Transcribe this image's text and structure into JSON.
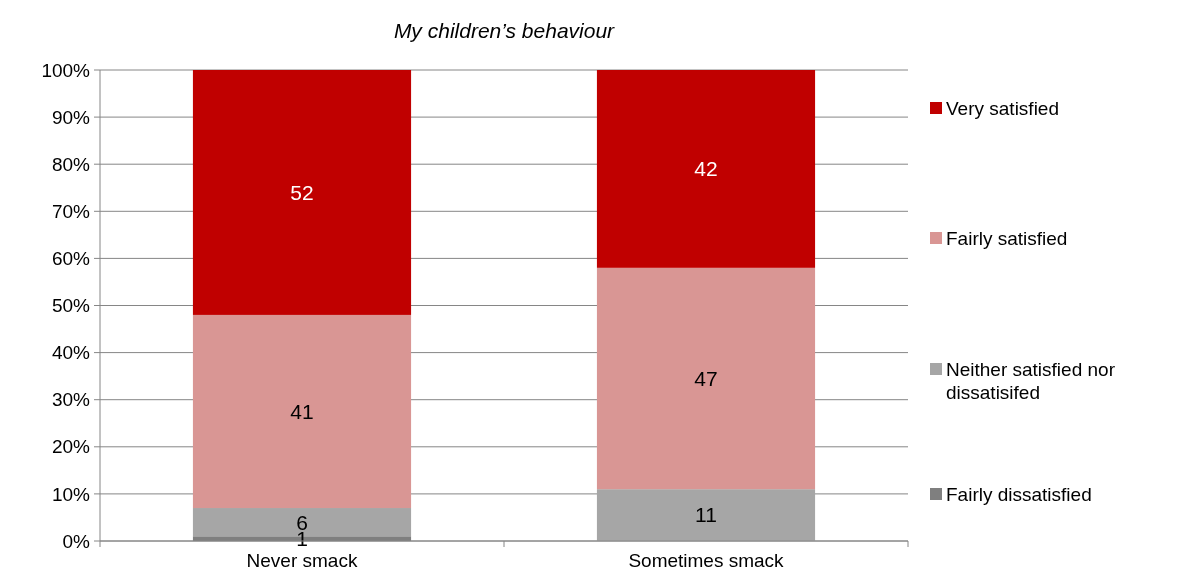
{
  "chart_data": {
    "type": "bar",
    "title": "My children’s behaviour",
    "categories": [
      "Never smack",
      "Sometimes smack"
    ],
    "stacked": true,
    "data_labels": true,
    "grid": "y",
    "legend": "right",
    "ylim": [
      0,
      100
    ],
    "yticks": [
      {
        "value": 0,
        "label": "0%"
      },
      {
        "value": 10,
        "label": "10%"
      },
      {
        "value": 20,
        "label": "20%"
      },
      {
        "value": 30,
        "label": "30%"
      },
      {
        "value": 40,
        "label": "40%"
      },
      {
        "value": 50,
        "label": "50%"
      },
      {
        "value": 60,
        "label": "60%"
      },
      {
        "value": 70,
        "label": "70%"
      },
      {
        "value": 80,
        "label": "80%"
      },
      {
        "value": 90,
        "label": "90%"
      },
      {
        "value": 100,
        "label": "100%"
      }
    ],
    "series": [
      {
        "name": "Fairly dissatisfied",
        "color": "#7f7f7f",
        "values": [
          1,
          null
        ]
      },
      {
        "name": "Neither satisfied nor dissatisifed",
        "color": "#a6a6a6",
        "values": [
          6,
          11
        ]
      },
      {
        "name": "Fairly satisfied",
        "color": "#d99694",
        "values": [
          41,
          47
        ]
      },
      {
        "name": "Very satisfied",
        "color": "#c00000",
        "values": [
          52,
          42
        ]
      }
    ]
  }
}
